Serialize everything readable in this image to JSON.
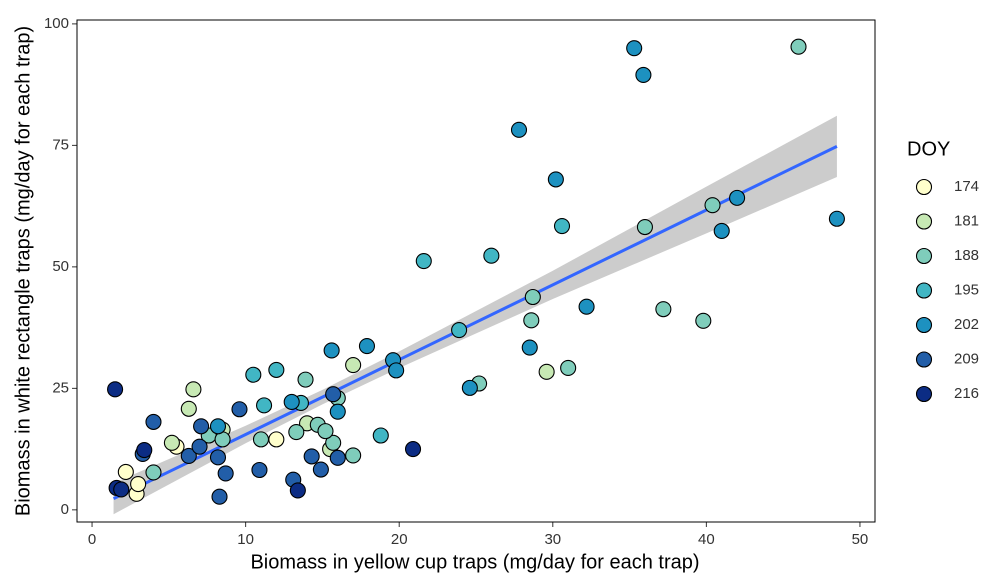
{
  "chart_data": {
    "type": "scatter",
    "xlabel": "Biomass in yellow cup traps (mg/day for each trap)",
    "ylabel": "Biomass in white rectangle traps (mg/day for each trap)",
    "legend_title": "DOY",
    "legend_position": "right",
    "xlim": [
      -0.98,
      50.98
    ],
    "ylim": [
      -2.5,
      100.8
    ],
    "xticks": [
      0,
      10,
      20,
      30,
      40,
      50
    ],
    "yticks": [
      0,
      25,
      50,
      75,
      100
    ],
    "fit": {
      "color": "#3366ff",
      "band_color": "#cccccc",
      "x": [
        1.4,
        10,
        15,
        20,
        30,
        40,
        48.5
      ],
      "y": [
        2.3,
        15.5,
        23.2,
        30.9,
        46.3,
        61.7,
        74.8
      ],
      "lower": [
        -0.9,
        13.7,
        21.7,
        29.2,
        43.4,
        56.9,
        68.5
      ],
      "upper": [
        5.5,
        17.3,
        24.7,
        32.6,
        49.2,
        66.5,
        81.1
      ]
    },
    "series": [
      {
        "name": "174",
        "color": "#ffffcc",
        "x": [
          2.2,
          2.9,
          3.0,
          5.5,
          12.0
        ],
        "y": [
          7.8,
          3.3,
          5.3,
          13.0,
          14.5
        ]
      },
      {
        "name": "181",
        "color": "#c7e9b4",
        "x": [
          5.2,
          6.3,
          6.6,
          8.5,
          14.0,
          15.5,
          17.0,
          29.6
        ],
        "y": [
          13.8,
          20.8,
          24.8,
          16.5,
          17.8,
          12.5,
          29.8,
          28.4
        ]
      },
      {
        "name": "188",
        "color": "#7fcdbb",
        "x": [
          4.0,
          7.6,
          8.5,
          11.0,
          13.3,
          14.7,
          15.7,
          16.0,
          17.0,
          25.2,
          28.6,
          28.7,
          31.0,
          37.2,
          39.8,
          36.0,
          40.4,
          46.0,
          13.9,
          15.2
        ],
        "y": [
          7.7,
          15.3,
          14.5,
          14.5,
          16.0,
          17.5,
          13.8,
          23.0,
          11.2,
          26.0,
          39.0,
          43.8,
          29.2,
          41.3,
          38.9,
          58.2,
          62.7,
          95.3,
          26.8,
          16.2
        ]
      },
      {
        "name": "195",
        "color": "#41b6c4",
        "x": [
          10.5,
          11.2,
          12.0,
          13.6,
          18.8,
          21.6,
          23.9,
          26.0,
          30.6
        ],
        "y": [
          27.8,
          21.5,
          28.8,
          22.0,
          15.3,
          51.2,
          37.0,
          52.3,
          58.4
        ]
      },
      {
        "name": "202",
        "color": "#1d91c0",
        "x": [
          8.2,
          13.0,
          15.6,
          17.9,
          19.6,
          19.8,
          24.6,
          28.5,
          30.2,
          32.2,
          27.8,
          35.3,
          35.9,
          41.0,
          42.0,
          48.5,
          16.0
        ],
        "y": [
          17.2,
          22.2,
          32.8,
          33.7,
          30.8,
          28.7,
          25.1,
          33.4,
          68.0,
          41.8,
          78.2,
          95.0,
          89.5,
          57.4,
          64.2,
          59.9,
          20.2
        ]
      },
      {
        "name": "209",
        "color": "#225ea8",
        "x": [
          3.3,
          4.0,
          6.3,
          7.1,
          7.0,
          8.2,
          8.7,
          9.6,
          10.9,
          14.3,
          14.9,
          16.0,
          15.7,
          13.1,
          8.3
        ],
        "y": [
          11.5,
          18.1,
          11.1,
          17.2,
          13.0,
          10.8,
          7.5,
          20.7,
          8.2,
          11.0,
          8.3,
          10.7,
          23.8,
          6.2,
          2.7
        ]
      },
      {
        "name": "216",
        "color": "#0c2c84",
        "x": [
          1.5,
          1.6,
          1.9,
          3.4,
          13.4,
          20.9
        ],
        "y": [
          24.8,
          4.5,
          4.2,
          12.3,
          4.0,
          12.5
        ]
      }
    ]
  }
}
